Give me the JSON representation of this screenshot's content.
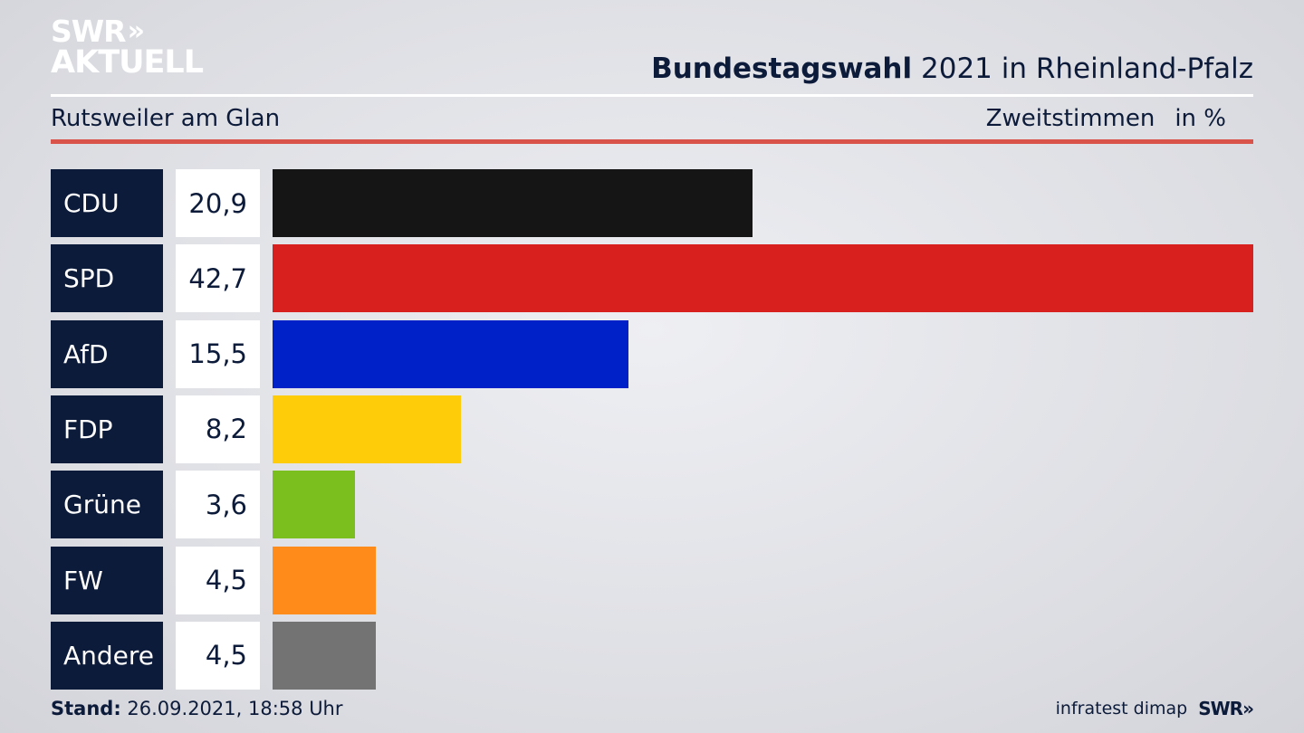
{
  "logo": {
    "line1": "SWR",
    "line2": "AKTUELL",
    "chevrons": "»"
  },
  "header": {
    "title_bold": "Bundestagswahl",
    "title_rest": "2021 in Rheinland-Pfalz",
    "region": "Rutsweiler am Glan",
    "metric": "Zweitstimmen",
    "unit": "in %"
  },
  "chart_data": {
    "type": "bar",
    "orientation": "horizontal",
    "categories": [
      "CDU",
      "SPD",
      "AfD",
      "FDP",
      "Grüne",
      "FW",
      "Andere"
    ],
    "values": [
      20.9,
      42.7,
      15.5,
      8.2,
      3.6,
      4.5,
      4.5
    ],
    "value_labels": [
      "20,9",
      "42,7",
      "15,5",
      "8,2",
      "3,6",
      "4,5",
      "4,5"
    ],
    "colors": [
      "#151515",
      "#d8201f",
      "#0020c8",
      "#ffcc0a",
      "#7bbf1e",
      "#ff8c1a",
      "#737373"
    ],
    "xlim": [
      0,
      42.7
    ]
  },
  "footer": {
    "stand_label": "Stand:",
    "stand_value": "26.09.2021, 18:58 Uhr",
    "source": "infratest dimap",
    "source_logo": "SWR»"
  }
}
